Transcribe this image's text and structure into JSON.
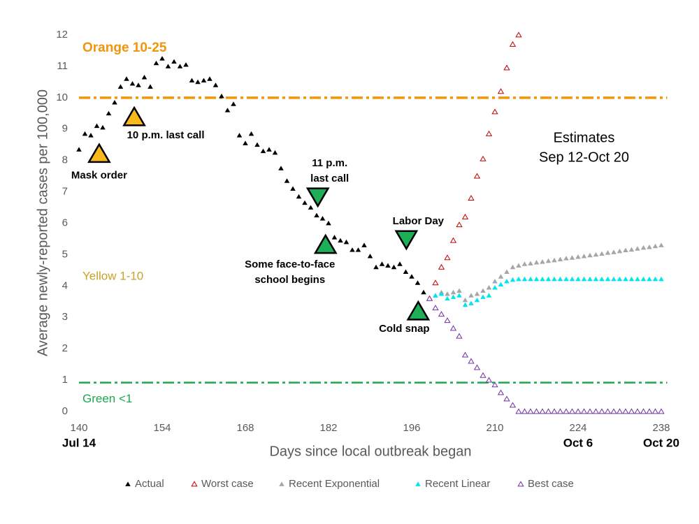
{
  "chart_data": {
    "type": "scatter",
    "xlabel": "Days since local outbreak began",
    "ylabel": "Average newly-reported cases per 100,000",
    "xlim": [
      140,
      239
    ],
    "ylim": [
      0,
      12
    ],
    "xticks": [
      140,
      154,
      168,
      182,
      196,
      210,
      224,
      238
    ],
    "yticks": [
      0,
      1,
      2,
      3,
      4,
      5,
      6,
      7,
      8,
      9,
      10,
      11,
      12
    ],
    "xdate_labels": [
      {
        "value": 140,
        "label": "Jul 14"
      },
      {
        "value": 224,
        "label": "Oct 6"
      },
      {
        "value": 238,
        "label": "Oct 20"
      }
    ],
    "reference_lines": [
      {
        "value": 10,
        "color": "#f0960a",
        "label": "Orange 10-25",
        "label_color": "#f0960a"
      },
      {
        "value": 0.92,
        "color": "#1ba94c",
        "label": "Green <1",
        "label_color": "#1ba94c"
      }
    ],
    "zone_labels": [
      {
        "label": "Yellow 1-10",
        "y": 4.3,
        "color": "#c9a227"
      }
    ],
    "note": {
      "lines": [
        "Estimates",
        "Sep 12-Oct 20"
      ],
      "x": 225,
      "y": 8.7
    },
    "events": [
      {
        "label": [
          "Mask order"
        ],
        "x": 143.4,
        "y": 8.2,
        "marker": "up",
        "color": "#f9b81b",
        "label_position": "below"
      },
      {
        "label": [
          "10 p.m. last call"
        ],
        "x": 149.3,
        "y": 9.37,
        "marker": "up",
        "color": "#f9b81b",
        "label_position": "below-right"
      },
      {
        "label": [
          "11 p.m.",
          "last call"
        ],
        "x": 180.2,
        "y": 6.86,
        "marker": "down",
        "color": "#1eae57",
        "label_position": "above"
      },
      {
        "label": [
          "Some face-to-face",
          "school begins"
        ],
        "x": 181.5,
        "y": 5.3,
        "marker": "up",
        "color": "#1eae57",
        "label_position": "below-left"
      },
      {
        "label": [
          "Labor Day"
        ],
        "x": 195.1,
        "y": 5.5,
        "marker": "down",
        "color": "#1eae57",
        "label_position": "above"
      },
      {
        "label": [
          "Cold snap"
        ],
        "x": 197.1,
        "y": 3.18,
        "marker": "up",
        "color": "#1eae57",
        "label_position": "below-left-short"
      }
    ],
    "series": [
      {
        "name": "Actual",
        "color": "#000000",
        "marker": "filled",
        "x": [
          140,
          141,
          142,
          143,
          144,
          145,
          146,
          147,
          148,
          149,
          150,
          151,
          152,
          153,
          154,
          155,
          156,
          157,
          158,
          159,
          160,
          161,
          162,
          163,
          164,
          165,
          166,
          167,
          168,
          169,
          170,
          171,
          172,
          173,
          174,
          175,
          176,
          177,
          178,
          179,
          180,
          181,
          182,
          183,
          184,
          185,
          186,
          187,
          188,
          189,
          190,
          191,
          192,
          193,
          194,
          195,
          196,
          197,
          198,
          199
        ],
        "values": [
          8.35,
          8.85,
          8.8,
          9.1,
          9.05,
          9.5,
          9.85,
          10.35,
          10.6,
          10.45,
          10.4,
          10.65,
          10.35,
          11.1,
          11.25,
          11.0,
          11.15,
          11.0,
          11.05,
          10.55,
          10.5,
          10.55,
          10.6,
          10.4,
          10.05,
          9.6,
          9.8,
          8.8,
          8.55,
          8.85,
          8.5,
          8.3,
          8.35,
          8.25,
          7.75,
          7.35,
          7.1,
          6.85,
          6.65,
          6.5,
          6.25,
          6.15,
          6.0,
          5.55,
          5.45,
          5.4,
          5.15,
          5.15,
          5.3,
          4.95,
          4.6,
          4.7,
          4.65,
          4.6,
          4.7,
          4.45,
          4.3,
          4.1,
          3.8,
          3.6
        ]
      },
      {
        "name": "Worst case",
        "color": "#c00000",
        "marker": "hollow",
        "x": [
          199,
          200,
          201,
          202,
          203,
          204,
          205,
          206,
          207,
          208,
          209,
          210,
          211,
          212,
          213,
          214
        ],
        "values": [
          3.6,
          4.1,
          4.6,
          4.9,
          5.45,
          5.95,
          6.2,
          6.8,
          7.5,
          8.05,
          8.85,
          9.55,
          10.2,
          10.95,
          11.7,
          12.0
        ]
      },
      {
        "name": "Recent Exponential",
        "color": "#a6a6a6",
        "marker": "filled",
        "x": [
          199,
          200,
          201,
          202,
          203,
          204,
          205,
          206,
          207,
          208,
          209,
          210,
          211,
          212,
          213,
          214,
          215,
          216,
          217,
          218,
          219,
          220,
          221,
          222,
          223,
          224,
          225,
          226,
          227,
          228,
          229,
          230,
          231,
          232,
          233,
          234,
          235,
          236,
          237,
          238
        ],
        "values": [
          3.6,
          3.7,
          3.8,
          3.75,
          3.8,
          3.85,
          3.55,
          3.7,
          3.75,
          3.85,
          3.95,
          4.15,
          4.3,
          4.45,
          4.6,
          4.65,
          4.7,
          4.72,
          4.75,
          4.77,
          4.8,
          4.82,
          4.85,
          4.88,
          4.9,
          4.93,
          4.95,
          4.98,
          5.0,
          5.03,
          5.06,
          5.08,
          5.11,
          5.14,
          5.16,
          5.19,
          5.22,
          5.24,
          5.27,
          5.3
        ]
      },
      {
        "name": "Recent Linear",
        "color": "#00e5ee",
        "marker": "filled",
        "x": [
          199,
          200,
          201,
          202,
          203,
          204,
          205,
          206,
          207,
          208,
          209,
          210,
          211,
          212,
          213,
          214,
          215,
          216,
          217,
          218,
          219,
          220,
          221,
          222,
          223,
          224,
          225,
          226,
          227,
          228,
          229,
          230,
          231,
          232,
          233,
          234,
          235,
          236,
          237,
          238
        ],
        "values": [
          3.6,
          3.7,
          3.75,
          3.6,
          3.65,
          3.7,
          3.4,
          3.45,
          3.55,
          3.65,
          3.7,
          3.95,
          4.05,
          4.15,
          4.2,
          4.22,
          4.22,
          4.22,
          4.22,
          4.22,
          4.22,
          4.22,
          4.22,
          4.22,
          4.22,
          4.22,
          4.22,
          4.22,
          4.22,
          4.22,
          4.22,
          4.22,
          4.22,
          4.22,
          4.22,
          4.22,
          4.22,
          4.22,
          4.22,
          4.22
        ]
      },
      {
        "name": "Best case",
        "color": "#7030a0",
        "marker": "hollow",
        "x": [
          199,
          200,
          201,
          202,
          203,
          204,
          205,
          206,
          207,
          208,
          209,
          210,
          211,
          212,
          213,
          214,
          215,
          216,
          217,
          218,
          219,
          220,
          221,
          222,
          223,
          224,
          225,
          226,
          227,
          228,
          229,
          230,
          231,
          232,
          233,
          234,
          235,
          236,
          237,
          238
        ],
        "values": [
          3.6,
          3.3,
          3.1,
          2.9,
          2.65,
          2.4,
          1.8,
          1.6,
          1.4,
          1.15,
          1.0,
          0.85,
          0.6,
          0.4,
          0.2,
          0,
          0,
          0,
          0,
          0,
          0,
          0,
          0,
          0,
          0,
          0,
          0,
          0,
          0,
          0,
          0,
          0,
          0,
          0,
          0,
          0,
          0,
          0,
          0,
          0
        ]
      }
    ]
  }
}
